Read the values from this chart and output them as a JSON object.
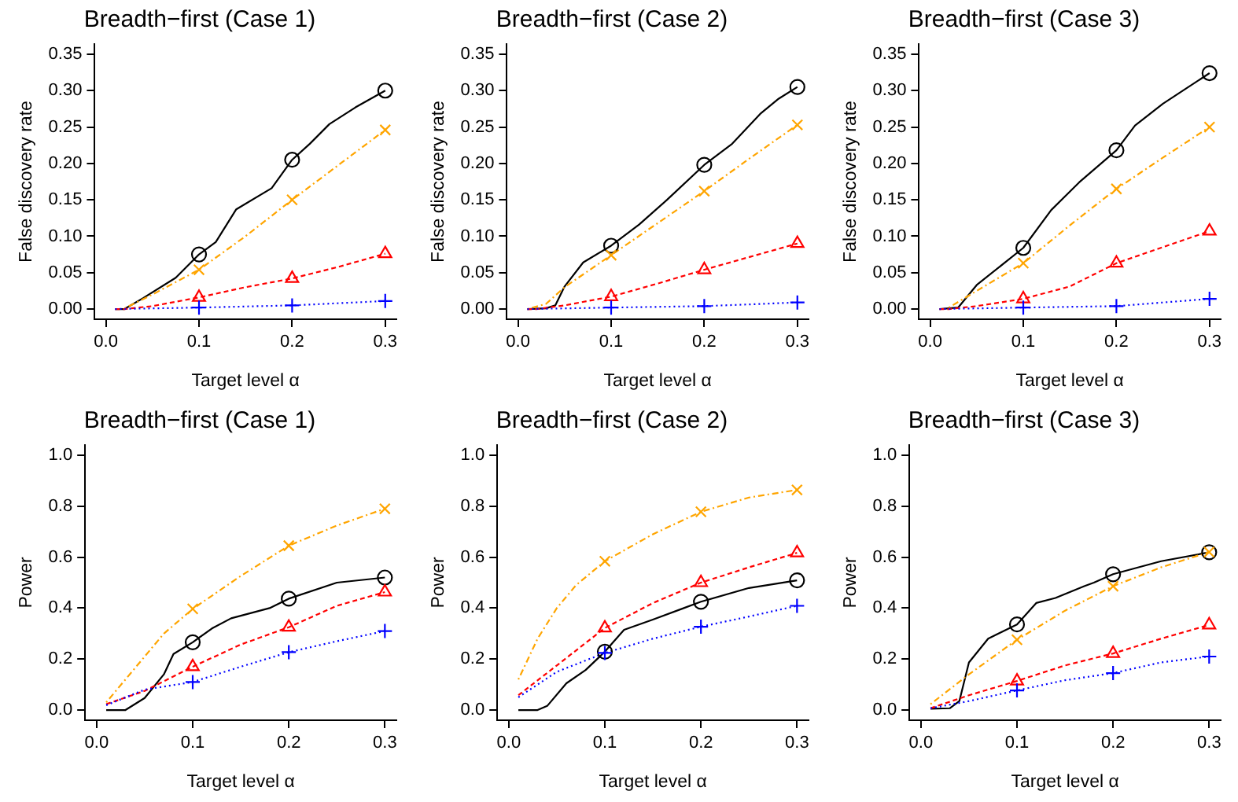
{
  "chart_data": [
    {
      "type": "line",
      "title": "Breadth−first (Case 1)",
      "xlabel": "Target level α",
      "ylabel": "False discovery rate",
      "xlim": [
        -0.012,
        0.312
      ],
      "ylim": [
        -0.014,
        0.364
      ],
      "xticks": [
        {
          "value": 0,
          "label": "0.0"
        },
        {
          "value": 0.1,
          "label": "0.1"
        },
        {
          "value": 0.2,
          "label": "0.2"
        },
        {
          "value": 0.3,
          "label": "0.3"
        }
      ],
      "yticks": [
        {
          "value": 0,
          "label": "0.00"
        },
        {
          "value": 0.05,
          "label": "0.05"
        },
        {
          "value": 0.1,
          "label": "0.10"
        },
        {
          "value": 0.15,
          "label": "0.15"
        },
        {
          "value": 0.2,
          "label": "0.20"
        },
        {
          "value": 0.25,
          "label": "0.25"
        },
        {
          "value": 0.3,
          "label": "0.30"
        },
        {
          "value": 0.35,
          "label": "0.35"
        }
      ],
      "grid": false,
      "legend": false,
      "series": [
        {
          "type": "line",
          "color": "#000000",
          "line_style": "solid",
          "marker": "none",
          "x": [
            0.01,
            0.02,
            0.04,
            0.075,
            0.1,
            0.118,
            0.14,
            0.178,
            0.2,
            0.219,
            0.24,
            0.268,
            0.3
          ],
          "values": [
            0,
            0,
            0.015,
            0.043,
            0.075,
            0.092,
            0.137,
            0.166,
            0.205,
            0.227,
            0.254,
            0.277,
            0.3
          ]
        },
        {
          "type": "line",
          "color": "#ffa500",
          "line_style": "dashdot",
          "marker": "none",
          "x": [
            0.02,
            0.05,
            0.1,
            0.15,
            0.2,
            0.25,
            0.3
          ],
          "values": [
            0.001,
            0.02,
            0.054,
            0.1,
            0.15,
            0.198,
            0.246
          ]
        },
        {
          "type": "line",
          "color": "#ff0000",
          "line_style": "dashed",
          "marker": "none",
          "x": [
            0.01,
            0.02,
            0.05,
            0.1,
            0.15,
            0.2,
            0.25,
            0.3
          ],
          "values": [
            0,
            0,
            0.004,
            0.016,
            0.03,
            0.042,
            0.058,
            0.076
          ]
        },
        {
          "type": "line",
          "color": "#0000ff",
          "line_style": "dotted",
          "marker": "none",
          "x": [
            0.01,
            0.1,
            0.2,
            0.3
          ],
          "values": [
            0,
            0.002,
            0.005,
            0.011
          ]
        },
        {
          "type": "scatter",
          "color": "#000000",
          "marker": "circle",
          "x": [
            0.1,
            0.2,
            0.3
          ],
          "values": [
            0.075,
            0.205,
            0.3
          ]
        },
        {
          "type": "scatter",
          "color": "#ffa500",
          "marker": "x",
          "x": [
            0.1,
            0.2,
            0.3
          ],
          "values": [
            0.054,
            0.15,
            0.246
          ]
        },
        {
          "type": "scatter",
          "color": "#ff0000",
          "marker": "triangle",
          "x": [
            0.1,
            0.2,
            0.3
          ],
          "values": [
            0.016,
            0.042,
            0.076
          ]
        },
        {
          "type": "scatter",
          "color": "#0000ff",
          "marker": "cross",
          "x": [
            0.1,
            0.2,
            0.3
          ],
          "values": [
            0.002,
            0.005,
            0.011
          ]
        }
      ]
    },
    {
      "type": "line",
      "title": "Breadth−first (Case 2)",
      "xlabel": "Target level α",
      "ylabel": "False discovery rate",
      "xlim": [
        -0.012,
        0.312
      ],
      "ylim": [
        -0.014,
        0.364
      ],
      "xticks": [
        {
          "value": 0,
          "label": "0.0"
        },
        {
          "value": 0.1,
          "label": "0.1"
        },
        {
          "value": 0.2,
          "label": "0.2"
        },
        {
          "value": 0.3,
          "label": "0.3"
        }
      ],
      "yticks": [
        {
          "value": 0,
          "label": "0.00"
        },
        {
          "value": 0.05,
          "label": "0.05"
        },
        {
          "value": 0.1,
          "label": "0.10"
        },
        {
          "value": 0.15,
          "label": "0.15"
        },
        {
          "value": 0.2,
          "label": "0.20"
        },
        {
          "value": 0.25,
          "label": "0.25"
        },
        {
          "value": 0.3,
          "label": "0.30"
        },
        {
          "value": 0.35,
          "label": "0.35"
        }
      ],
      "grid": false,
      "legend": false,
      "series": [
        {
          "type": "line",
          "color": "#000000",
          "line_style": "solid",
          "marker": "none",
          "x": [
            0.01,
            0.03,
            0.04,
            0.05,
            0.07,
            0.1,
            0.13,
            0.16,
            0.2,
            0.23,
            0.26,
            0.28,
            0.3
          ],
          "values": [
            0,
            0.001,
            0.005,
            0.031,
            0.064,
            0.087,
            0.116,
            0.15,
            0.198,
            0.227,
            0.268,
            0.289,
            0.305
          ]
        },
        {
          "type": "line",
          "color": "#ffa500",
          "line_style": "dashdot",
          "marker": "none",
          "x": [
            0.01,
            0.03,
            0.05,
            0.1,
            0.15,
            0.2,
            0.25,
            0.3
          ],
          "values": [
            0,
            0.007,
            0.03,
            0.074,
            0.118,
            0.162,
            0.208,
            0.253
          ]
        },
        {
          "type": "line",
          "color": "#ff0000",
          "line_style": "dashed",
          "marker": "none",
          "x": [
            0.01,
            0.02,
            0.05,
            0.1,
            0.15,
            0.2,
            0.25,
            0.3
          ],
          "values": [
            0,
            0,
            0.005,
            0.017,
            0.035,
            0.054,
            0.072,
            0.09
          ]
        },
        {
          "type": "line",
          "color": "#0000ff",
          "line_style": "dotted",
          "marker": "none",
          "x": [
            0.01,
            0.1,
            0.2,
            0.3
          ],
          "values": [
            0,
            0.002,
            0.004,
            0.009
          ]
        },
        {
          "type": "scatter",
          "color": "#000000",
          "marker": "circle",
          "x": [
            0.1,
            0.2,
            0.3
          ],
          "values": [
            0.087,
            0.198,
            0.305
          ]
        },
        {
          "type": "scatter",
          "color": "#ffa500",
          "marker": "x",
          "x": [
            0.1,
            0.2,
            0.3
          ],
          "values": [
            0.074,
            0.162,
            0.253
          ]
        },
        {
          "type": "scatter",
          "color": "#ff0000",
          "marker": "triangle",
          "x": [
            0.1,
            0.2,
            0.3
          ],
          "values": [
            0.017,
            0.054,
            0.09
          ]
        },
        {
          "type": "scatter",
          "color": "#0000ff",
          "marker": "cross",
          "x": [
            0.1,
            0.2,
            0.3
          ],
          "values": [
            0.002,
            0.004,
            0.009
          ]
        }
      ]
    },
    {
      "type": "line",
      "title": "Breadth−first (Case 3)",
      "xlabel": "Target level α",
      "ylabel": "False discovery rate",
      "xlim": [
        -0.012,
        0.312
      ],
      "ylim": [
        -0.014,
        0.364
      ],
      "xticks": [
        {
          "value": 0,
          "label": "0.0"
        },
        {
          "value": 0.1,
          "label": "0.1"
        },
        {
          "value": 0.2,
          "label": "0.2"
        },
        {
          "value": 0.3,
          "label": "0.3"
        }
      ],
      "yticks": [
        {
          "value": 0,
          "label": "0.00"
        },
        {
          "value": 0.05,
          "label": "0.05"
        },
        {
          "value": 0.1,
          "label": "0.10"
        },
        {
          "value": 0.15,
          "label": "0.15"
        },
        {
          "value": 0.2,
          "label": "0.20"
        },
        {
          "value": 0.25,
          "label": "0.25"
        },
        {
          "value": 0.3,
          "label": "0.30"
        },
        {
          "value": 0.35,
          "label": "0.35"
        }
      ],
      "grid": false,
      "legend": false,
      "series": [
        {
          "type": "line",
          "color": "#000000",
          "line_style": "solid",
          "marker": "none",
          "x": [
            0.01,
            0.03,
            0.05,
            0.1,
            0.13,
            0.16,
            0.2,
            0.22,
            0.25,
            0.3
          ],
          "values": [
            0,
            0.002,
            0.033,
            0.084,
            0.136,
            0.174,
            0.218,
            0.252,
            0.282,
            0.324
          ]
        },
        {
          "type": "line",
          "color": "#ffa500",
          "line_style": "dashdot",
          "marker": "none",
          "x": [
            0.02,
            0.05,
            0.1,
            0.15,
            0.2,
            0.25,
            0.3
          ],
          "values": [
            0.002,
            0.025,
            0.063,
            0.115,
            0.165,
            0.208,
            0.25
          ]
        },
        {
          "type": "line",
          "color": "#ff0000",
          "line_style": "dashed",
          "marker": "none",
          "x": [
            0.01,
            0.02,
            0.05,
            0.1,
            0.15,
            0.2,
            0.25,
            0.3
          ],
          "values": [
            0,
            0,
            0.004,
            0.014,
            0.031,
            0.063,
            0.085,
            0.107
          ]
        },
        {
          "type": "line",
          "color": "#0000ff",
          "line_style": "dotted",
          "marker": "none",
          "x": [
            0.01,
            0.1,
            0.2,
            0.3
          ],
          "values": [
            0,
            0.002,
            0.004,
            0.014
          ]
        },
        {
          "type": "scatter",
          "color": "#000000",
          "marker": "circle",
          "x": [
            0.1,
            0.2,
            0.3
          ],
          "values": [
            0.084,
            0.218,
            0.324
          ]
        },
        {
          "type": "scatter",
          "color": "#ffa500",
          "marker": "x",
          "x": [
            0.1,
            0.2,
            0.3
          ],
          "values": [
            0.063,
            0.165,
            0.25
          ]
        },
        {
          "type": "scatter",
          "color": "#ff0000",
          "marker": "triangle",
          "x": [
            0.1,
            0.2,
            0.3
          ],
          "values": [
            0.014,
            0.063,
            0.107
          ]
        },
        {
          "type": "scatter",
          "color": "#0000ff",
          "marker": "cross",
          "x": [
            0.1,
            0.2,
            0.3
          ],
          "values": [
            0.002,
            0.004,
            0.014
          ]
        }
      ]
    },
    {
      "type": "line",
      "title": "Breadth−first (Case 1)",
      "xlabel": "Target level α",
      "ylabel": "Power",
      "xlim": [
        -0.012,
        0.312
      ],
      "ylim": [
        -0.04,
        1.04
      ],
      "xticks": [
        {
          "value": 0,
          "label": "0.0"
        },
        {
          "value": 0.1,
          "label": "0.1"
        },
        {
          "value": 0.2,
          "label": "0.2"
        },
        {
          "value": 0.3,
          "label": "0.3"
        }
      ],
      "yticks": [
        {
          "value": 0,
          "label": "0.0"
        },
        {
          "value": 0.2,
          "label": "0.2"
        },
        {
          "value": 0.4,
          "label": "0.4"
        },
        {
          "value": 0.6,
          "label": "0.6"
        },
        {
          "value": 0.8,
          "label": "0.8"
        },
        {
          "value": 1,
          "label": "1.0"
        }
      ],
      "grid": false,
      "legend": false,
      "series": [
        {
          "type": "line",
          "color": "#000000",
          "line_style": "solid",
          "marker": "none",
          "x": [
            0.01,
            0.03,
            0.05,
            0.07,
            0.08,
            0.1,
            0.12,
            0.14,
            0.18,
            0.2,
            0.25,
            0.3
          ],
          "values": [
            0,
            0,
            0.047,
            0.14,
            0.22,
            0.266,
            0.32,
            0.36,
            0.4,
            0.437,
            0.5,
            0.52
          ]
        },
        {
          "type": "line",
          "color": "#ffa500",
          "line_style": "dashdot",
          "marker": "none",
          "x": [
            0.01,
            0.05,
            0.07,
            0.1,
            0.15,
            0.2,
            0.25,
            0.3
          ],
          "values": [
            0.03,
            0.21,
            0.3,
            0.397,
            0.526,
            0.645,
            0.724,
            0.79
          ]
        },
        {
          "type": "line",
          "color": "#ff0000",
          "line_style": "dashed",
          "marker": "none",
          "x": [
            0.01,
            0.05,
            0.1,
            0.15,
            0.2,
            0.25,
            0.3
          ],
          "values": [
            0.023,
            0.075,
            0.17,
            0.257,
            0.325,
            0.409,
            0.463
          ]
        },
        {
          "type": "line",
          "color": "#0000ff",
          "line_style": "dotted",
          "marker": "none",
          "x": [
            0.01,
            0.05,
            0.1,
            0.15,
            0.2,
            0.25,
            0.3
          ],
          "values": [
            0.019,
            0.08,
            0.11,
            0.17,
            0.227,
            0.27,
            0.31
          ]
        },
        {
          "type": "scatter",
          "color": "#000000",
          "marker": "circle",
          "x": [
            0.1,
            0.2,
            0.3
          ],
          "values": [
            0.266,
            0.437,
            0.52
          ]
        },
        {
          "type": "scatter",
          "color": "#ffa500",
          "marker": "x",
          "x": [
            0.1,
            0.2,
            0.3
          ],
          "values": [
            0.397,
            0.645,
            0.79
          ]
        },
        {
          "type": "scatter",
          "color": "#ff0000",
          "marker": "triangle",
          "x": [
            0.1,
            0.2,
            0.3
          ],
          "values": [
            0.17,
            0.325,
            0.463
          ]
        },
        {
          "type": "scatter",
          "color": "#0000ff",
          "marker": "cross",
          "x": [
            0.1,
            0.2,
            0.3
          ],
          "values": [
            0.11,
            0.227,
            0.31
          ]
        }
      ]
    },
    {
      "type": "line",
      "title": "Breadth−first (Case 2)",
      "xlabel": "Target level α",
      "ylabel": "Power",
      "xlim": [
        -0.012,
        0.312
      ],
      "ylim": [
        -0.04,
        1.04
      ],
      "xticks": [
        {
          "value": 0,
          "label": "0.0"
        },
        {
          "value": 0.1,
          "label": "0.1"
        },
        {
          "value": 0.2,
          "label": "0.2"
        },
        {
          "value": 0.3,
          "label": "0.3"
        }
      ],
      "yticks": [
        {
          "value": 0,
          "label": "0.0"
        },
        {
          "value": 0.2,
          "label": "0.2"
        },
        {
          "value": 0.4,
          "label": "0.4"
        },
        {
          "value": 0.6,
          "label": "0.6"
        },
        {
          "value": 0.8,
          "label": "0.8"
        },
        {
          "value": 1,
          "label": "1.0"
        }
      ],
      "grid": false,
      "legend": false,
      "series": [
        {
          "type": "line",
          "color": "#000000",
          "line_style": "solid",
          "marker": "none",
          "x": [
            0.01,
            0.03,
            0.04,
            0.06,
            0.08,
            0.1,
            0.12,
            0.15,
            0.18,
            0.2,
            0.25,
            0.3
          ],
          "values": [
            0,
            0,
            0.016,
            0.105,
            0.157,
            0.229,
            0.315,
            0.355,
            0.397,
            0.425,
            0.479,
            0.509
          ]
        },
        {
          "type": "line",
          "color": "#ffa500",
          "line_style": "dashdot",
          "marker": "none",
          "x": [
            0.01,
            0.03,
            0.05,
            0.07,
            0.1,
            0.15,
            0.2,
            0.25,
            0.3
          ],
          "values": [
            0.12,
            0.28,
            0.4,
            0.49,
            0.584,
            0.69,
            0.778,
            0.834,
            0.864
          ]
        },
        {
          "type": "line",
          "color": "#ff0000",
          "line_style": "dashed",
          "marker": "none",
          "x": [
            0.01,
            0.05,
            0.1,
            0.15,
            0.2,
            0.25,
            0.3
          ],
          "values": [
            0.058,
            0.175,
            0.322,
            0.42,
            0.5,
            0.56,
            0.617
          ]
        },
        {
          "type": "line",
          "color": "#0000ff",
          "line_style": "dotted",
          "marker": "none",
          "x": [
            0.01,
            0.05,
            0.1,
            0.15,
            0.2,
            0.25,
            0.3
          ],
          "values": [
            0.05,
            0.15,
            0.224,
            0.28,
            0.327,
            0.367,
            0.409
          ]
        },
        {
          "type": "scatter",
          "color": "#000000",
          "marker": "circle",
          "x": [
            0.1,
            0.2,
            0.3
          ],
          "values": [
            0.229,
            0.425,
            0.509
          ]
        },
        {
          "type": "scatter",
          "color": "#ffa500",
          "marker": "x",
          "x": [
            0.1,
            0.2,
            0.3
          ],
          "values": [
            0.584,
            0.778,
            0.864
          ]
        },
        {
          "type": "scatter",
          "color": "#ff0000",
          "marker": "triangle",
          "x": [
            0.1,
            0.2,
            0.3
          ],
          "values": [
            0.322,
            0.5,
            0.617
          ]
        },
        {
          "type": "scatter",
          "color": "#0000ff",
          "marker": "cross",
          "x": [
            0.1,
            0.2,
            0.3
          ],
          "values": [
            0.224,
            0.327,
            0.409
          ]
        }
      ]
    },
    {
      "type": "line",
      "title": "Breadth−first (Case 3)",
      "xlabel": "Target level α",
      "ylabel": "Power",
      "xlim": [
        -0.012,
        0.312
      ],
      "ylim": [
        -0.04,
        1.04
      ],
      "xticks": [
        {
          "value": 0,
          "label": "0.0"
        },
        {
          "value": 0.1,
          "label": "0.1"
        },
        {
          "value": 0.2,
          "label": "0.2"
        },
        {
          "value": 0.3,
          "label": "0.3"
        }
      ],
      "yticks": [
        {
          "value": 0,
          "label": "0.0"
        },
        {
          "value": 0.2,
          "label": "0.2"
        },
        {
          "value": 0.4,
          "label": "0.4"
        },
        {
          "value": 0.6,
          "label": "0.6"
        },
        {
          "value": 0.8,
          "label": "0.8"
        },
        {
          "value": 1,
          "label": "1.0"
        }
      ],
      "grid": false,
      "legend": false,
      "series": [
        {
          "type": "line",
          "color": "#000000",
          "line_style": "solid",
          "marker": "none",
          "x": [
            0.01,
            0.03,
            0.04,
            0.05,
            0.07,
            0.1,
            0.12,
            0.14,
            0.17,
            0.18,
            0.2,
            0.25,
            0.3
          ],
          "values": [
            0.005,
            0.007,
            0.035,
            0.187,
            0.28,
            0.336,
            0.42,
            0.44,
            0.486,
            0.5,
            0.533,
            0.584,
            0.619
          ]
        },
        {
          "type": "line",
          "color": "#ffa500",
          "line_style": "dashdot",
          "marker": "none",
          "x": [
            0.01,
            0.05,
            0.1,
            0.15,
            0.2,
            0.25,
            0.3
          ],
          "values": [
            0.023,
            0.14,
            0.276,
            0.39,
            0.486,
            0.56,
            0.62
          ]
        },
        {
          "type": "line",
          "color": "#ff0000",
          "line_style": "dashed",
          "marker": "none",
          "x": [
            0.01,
            0.05,
            0.1,
            0.15,
            0.2,
            0.25,
            0.3
          ],
          "values": [
            0.007,
            0.058,
            0.114,
            0.175,
            0.222,
            0.28,
            0.334
          ]
        },
        {
          "type": "line",
          "color": "#0000ff",
          "line_style": "dotted",
          "marker": "none",
          "x": [
            0.01,
            0.05,
            0.1,
            0.15,
            0.2,
            0.25,
            0.3
          ],
          "values": [
            0.007,
            0.035,
            0.077,
            0.117,
            0.145,
            0.187,
            0.21
          ]
        },
        {
          "type": "scatter",
          "color": "#000000",
          "marker": "circle",
          "x": [
            0.1,
            0.2,
            0.3
          ],
          "values": [
            0.336,
            0.533,
            0.619
          ]
        },
        {
          "type": "scatter",
          "color": "#ffa500",
          "marker": "x",
          "x": [
            0.1,
            0.2,
            0.3
          ],
          "values": [
            0.276,
            0.486,
            0.62
          ]
        },
        {
          "type": "scatter",
          "color": "#ff0000",
          "marker": "triangle",
          "x": [
            0.1,
            0.2,
            0.3
          ],
          "values": [
            0.114,
            0.222,
            0.334
          ]
        },
        {
          "type": "scatter",
          "color": "#0000ff",
          "marker": "cross",
          "x": [
            0.1,
            0.2,
            0.3
          ],
          "values": [
            0.077,
            0.145,
            0.21
          ]
        }
      ]
    }
  ]
}
